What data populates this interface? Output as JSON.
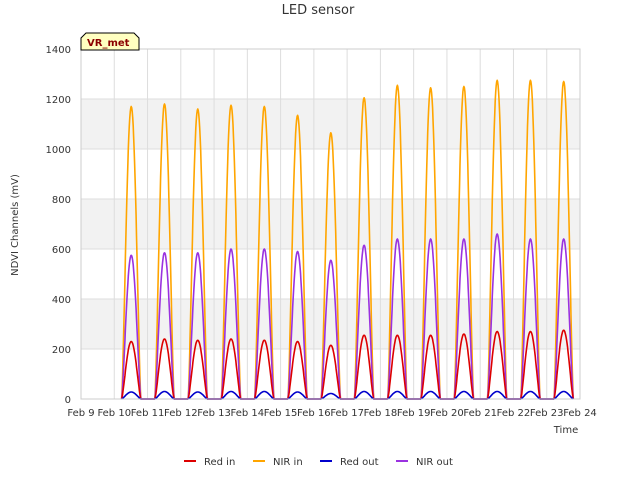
{
  "chart_data": {
    "type": "line",
    "title": "LED sensor",
    "xlabel": "Time",
    "ylabel": "NDVI Channels (mV)",
    "badge": "VR_met",
    "ylim": [
      0,
      1400
    ],
    "yticks": [
      0,
      200,
      400,
      600,
      800,
      1000,
      1200,
      1400
    ],
    "xlim": [
      "Feb 9",
      "Feb 24"
    ],
    "xticks": [
      "Feb 9",
      "Feb 10",
      "Feb 11",
      "Feb 12",
      "Feb 13",
      "Feb 14",
      "Feb 15",
      "Feb 16",
      "Feb 17",
      "Feb 18",
      "Feb 19",
      "Feb 20",
      "Feb 21",
      "Feb 22",
      "Feb 23",
      "Feb 24"
    ],
    "grid": true,
    "legend_position": "bottom",
    "days": [
      "Feb 10",
      "Feb 11",
      "Feb 12",
      "Feb 13",
      "Feb 14",
      "Feb 15",
      "Feb 16",
      "Feb 17",
      "Feb 18",
      "Feb 19",
      "Feb 20",
      "Feb 21",
      "Feb 22",
      "Feb 23"
    ],
    "series": [
      {
        "name": "Red in",
        "color": "#dd0000",
        "daily_peaks": [
          230,
          240,
          235,
          240,
          235,
          230,
          215,
          255,
          255,
          255,
          260,
          270,
          270,
          275
        ]
      },
      {
        "name": "NIR in",
        "color": "#ffa500",
        "daily_peaks": [
          1170,
          1180,
          1160,
          1175,
          1170,
          1135,
          1065,
          1205,
          1255,
          1245,
          1250,
          1275,
          1275,
          1270
        ]
      },
      {
        "name": "Red out",
        "color": "#0000cc",
        "daily_peaks": [
          28,
          30,
          28,
          30,
          30,
          28,
          22,
          30,
          30,
          30,
          30,
          30,
          30,
          30
        ]
      },
      {
        "name": "NIR out",
        "color": "#9a32e0",
        "daily_peaks": [
          575,
          585,
          585,
          600,
          600,
          590,
          555,
          615,
          640,
          640,
          640,
          660,
          640,
          640
        ]
      }
    ]
  }
}
